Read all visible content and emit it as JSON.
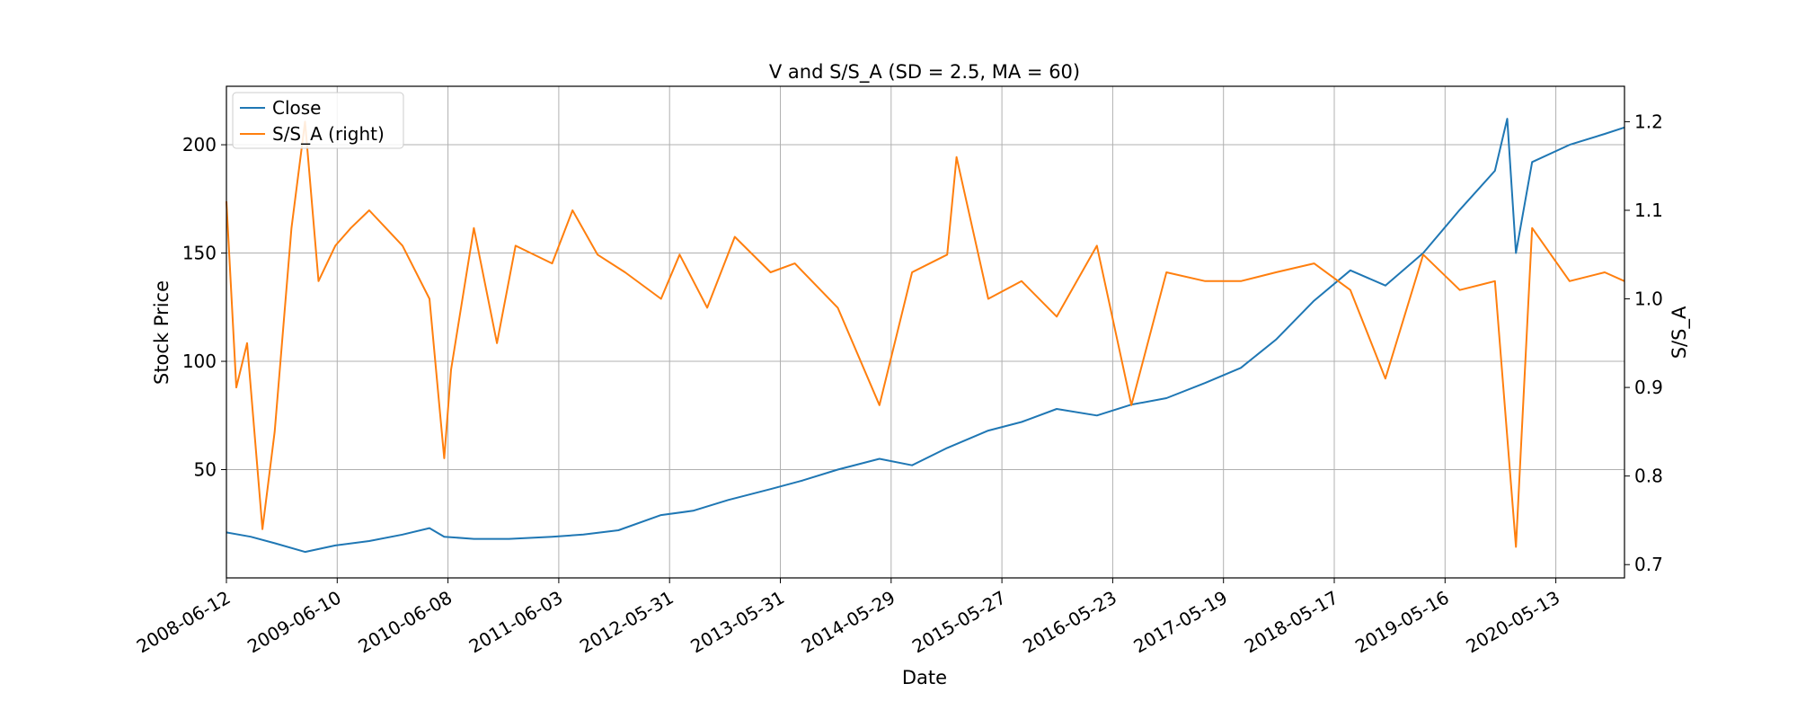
{
  "chart_data": {
    "type": "line",
    "title": "V and S/S_A (SD = 2.5, MA = 60)",
    "xlabel": "Date",
    "ylabel": "Stock Price",
    "ylabel_right": "S/S_A",
    "grid": true,
    "legend_position": "top-left",
    "x_tick_labels": [
      "2008-06-12",
      "2009-06-10",
      "2010-06-08",
      "2011-06-03",
      "2012-05-31",
      "2013-05-31",
      "2014-05-29",
      "2015-05-27",
      "2016-05-23",
      "2017-05-19",
      "2018-05-17",
      "2019-05-16",
      "2020-05-13"
    ],
    "xlim": [
      "2008-06-12",
      "2021-03-17"
    ],
    "ylim": [
      0,
      227
    ],
    "ylim_right": [
      0.685,
      1.24
    ],
    "y_ticks": [
      50,
      100,
      150,
      200
    ],
    "y_ticks_right": [
      0.7,
      0.8,
      0.9,
      1.0,
      1.1,
      1.2
    ],
    "series": [
      {
        "name": "Close",
        "axis": "left",
        "color": "#1f77b4",
        "x": [
          "2008-06-12",
          "2008-09-01",
          "2008-11-20",
          "2009-03-01",
          "2009-06-10",
          "2009-10-01",
          "2010-01-20",
          "2010-04-20",
          "2010-06-08",
          "2010-09-15",
          "2011-01-10",
          "2011-06-03",
          "2011-09-15",
          "2012-01-10",
          "2012-05-31",
          "2012-09-15",
          "2013-01-10",
          "2013-05-31",
          "2013-09-15",
          "2014-01-10",
          "2014-05-29",
          "2014-09-15",
          "2015-01-10",
          "2015-05-27",
          "2015-09-15",
          "2016-01-10",
          "2016-05-23",
          "2016-09-15",
          "2017-01-10",
          "2017-05-19",
          "2017-09-15",
          "2018-01-10",
          "2018-05-17",
          "2018-09-15",
          "2019-01-10",
          "2019-05-16",
          "2019-09-15",
          "2020-01-10",
          "2020-02-20",
          "2020-03-20",
          "2020-05-13",
          "2020-09-15",
          "2021-01-10",
          "2021-03-17"
        ],
        "values": [
          21,
          19,
          16,
          12,
          15,
          17,
          20,
          23,
          19,
          18,
          18,
          19,
          20,
          22,
          29,
          31,
          36,
          41,
          45,
          50,
          55,
          52,
          60,
          68,
          72,
          78,
          75,
          80,
          83,
          90,
          97,
          110,
          128,
          142,
          135,
          150,
          170,
          188,
          212,
          150,
          192,
          200,
          205,
          208
        ]
      },
      {
        "name": "S/S_A (right)",
        "axis": "right",
        "color": "#ff7f0e",
        "x": [
          "2008-06-12",
          "2008-07-15",
          "2008-08-20",
          "2008-10-10",
          "2008-11-20",
          "2009-01-15",
          "2009-03-01",
          "2009-04-15",
          "2009-06-10",
          "2009-08-01",
          "2009-10-01",
          "2010-01-20",
          "2010-04-20",
          "2010-06-08",
          "2010-07-01",
          "2010-09-15",
          "2010-12-01",
          "2011-02-01",
          "2011-06-03",
          "2011-08-10",
          "2011-11-01",
          "2012-02-01",
          "2012-05-31",
          "2012-08-01",
          "2012-11-01",
          "2013-02-01",
          "2013-05-31",
          "2013-08-20",
          "2014-01-10",
          "2014-05-29",
          "2014-09-15",
          "2015-01-10",
          "2015-02-10",
          "2015-05-27",
          "2015-09-15",
          "2016-01-10",
          "2016-05-23",
          "2016-09-15",
          "2017-01-10",
          "2017-05-19",
          "2017-09-15",
          "2018-01-10",
          "2018-05-17",
          "2018-09-15",
          "2019-01-10",
          "2019-05-16",
          "2019-09-15",
          "2020-01-10",
          "2020-03-20",
          "2020-05-13",
          "2020-09-15",
          "2021-01-10",
          "2021-03-17"
        ],
        "values": [
          1.11,
          0.9,
          0.95,
          0.74,
          0.85,
          1.08,
          1.2,
          1.02,
          1.06,
          1.08,
          1.1,
          1.06,
          1.0,
          0.82,
          0.92,
          1.08,
          0.95,
          1.06,
          1.04,
          1.1,
          1.05,
          1.03,
          1.0,
          1.05,
          0.99,
          1.07,
          1.03,
          1.04,
          0.99,
          0.88,
          1.03,
          1.05,
          1.16,
          1.0,
          1.02,
          0.98,
          1.06,
          0.88,
          1.03,
          1.02,
          1.02,
          1.03,
          1.04,
          1.01,
          0.91,
          1.05,
          1.01,
          1.02,
          0.72,
          1.08,
          1.02,
          1.03,
          1.02
        ]
      }
    ]
  }
}
